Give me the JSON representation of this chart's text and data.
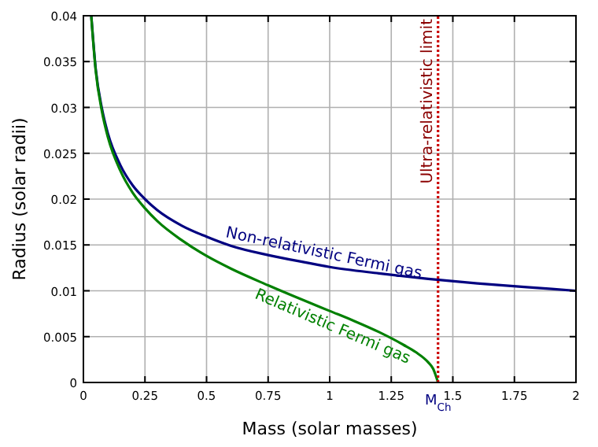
{
  "chart_data": {
    "type": "line",
    "xlabel": "Mass (solar masses)",
    "ylabel": "Radius (solar radii)",
    "xlim": [
      0,
      2
    ],
    "ylim": [
      0,
      0.04
    ],
    "xticks": [
      0,
      0.25,
      0.5,
      0.75,
      1,
      1.25,
      1.5,
      1.75,
      2
    ],
    "yticks": [
      0,
      0.005,
      0.01,
      0.015,
      0.02,
      0.025,
      0.03,
      0.035,
      0.04
    ],
    "grid": true,
    "legend": false,
    "series": [
      {
        "name": "Non-relativistic Fermi gas",
        "color": "#000080",
        "x": [
          0.032,
          0.05,
          0.075,
          0.1,
          0.15,
          0.2,
          0.25,
          0.3,
          0.4,
          0.5,
          0.6,
          0.75,
          0.9,
          1.0,
          1.2,
          1.4,
          1.6,
          1.8,
          2.0
        ],
        "values": [
          0.04,
          0.0342,
          0.0299,
          0.0271,
          0.0237,
          0.0215,
          0.02,
          0.0188,
          0.0171,
          0.0159,
          0.0149,
          0.0139,
          0.0131,
          0.0126,
          0.0119,
          0.0113,
          0.0108,
          0.0104,
          0.01
        ]
      },
      {
        "name": "Relativistic Fermi gas",
        "color": "#008000",
        "x": [
          0.032,
          0.05,
          0.075,
          0.1,
          0.15,
          0.2,
          0.25,
          0.3,
          0.4,
          0.5,
          0.6,
          0.75,
          0.9,
          1.0,
          1.1,
          1.2,
          1.3,
          1.35,
          1.4,
          1.42,
          1.44
        ],
        "values": [
          0.0399,
          0.034,
          0.0296,
          0.0267,
          0.0231,
          0.0207,
          0.019,
          0.0176,
          0.0155,
          0.0138,
          0.0124,
          0.0106,
          0.0089,
          0.0078,
          0.0067,
          0.0055,
          0.0041,
          0.0033,
          0.0022,
          0.0015,
          0
        ]
      }
    ],
    "ref_lines": [
      {
        "axis": "x",
        "value": 1.44,
        "label": "Ultra-relativistic limit",
        "color": "#cc0000",
        "line_style": "dotted"
      }
    ],
    "annotations": [
      {
        "text": "M$_{Ch}$",
        "x": 1.44,
        "y": 0
      }
    ]
  }
}
